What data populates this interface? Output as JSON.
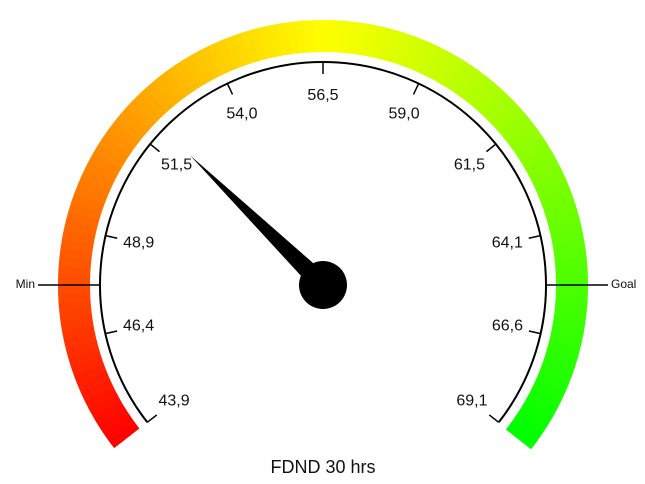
{
  "chart_data": {
    "type": "gauge",
    "title": "FDND 30 hrs",
    "min": 43.9,
    "max": 69.1,
    "value": 52.0,
    "ticks": [
      {
        "value": 43.9,
        "label": "43,9"
      },
      {
        "value": 46.4,
        "label": "46,4"
      },
      {
        "value": 48.9,
        "label": "48,9"
      },
      {
        "value": 51.5,
        "label": "51,5"
      },
      {
        "value": 54.0,
        "label": "54,0"
      },
      {
        "value": 56.5,
        "label": "56,5"
      },
      {
        "value": 59.0,
        "label": "59,0"
      },
      {
        "value": 61.5,
        "label": "61,5"
      },
      {
        "value": 64.1,
        "label": "64,1"
      },
      {
        "value": 66.6,
        "label": "66,6"
      },
      {
        "value": 69.1,
        "label": "69,1"
      }
    ],
    "markers": [
      {
        "label": "Min",
        "value": 47.64
      },
      {
        "label": "Goal",
        "value": 65.36
      }
    ],
    "color_stops": [
      "#ff0000",
      "#ffff00",
      "#00ff00"
    ],
    "needle_color": "#000000"
  }
}
